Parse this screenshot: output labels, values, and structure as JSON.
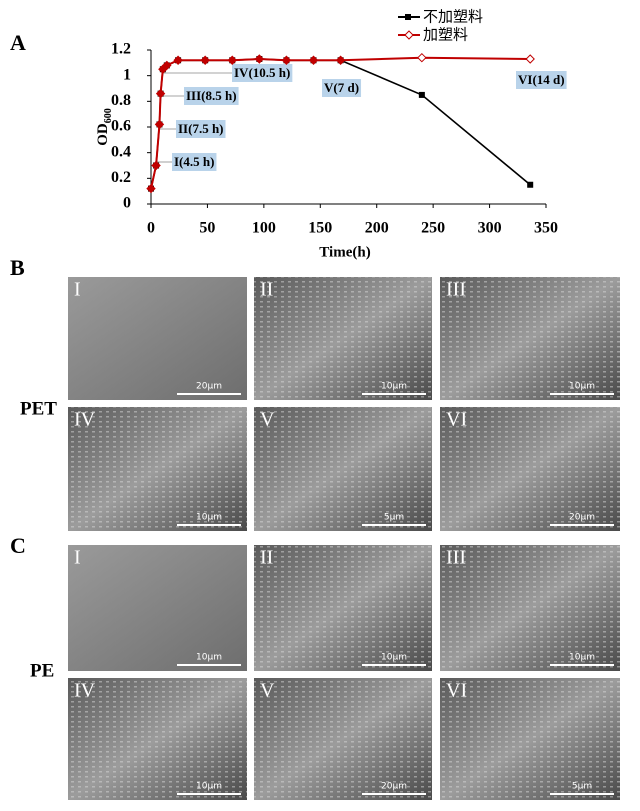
{
  "chart_data": {
    "type": "line",
    "panel_label": "A",
    "x_label": "Time(h)",
    "y_label": {
      "main": "OD",
      "subscript": "600"
    },
    "x": [
      0,
      4.5,
      7.5,
      8.5,
      10.5,
      14,
      24,
      48,
      72,
      96,
      120,
      144,
      168,
      240,
      336
    ],
    "series": [
      {
        "name": "不加塑料",
        "color": "#000000",
        "values": [
          0.12,
          0.3,
          0.62,
          0.86,
          1.05,
          1.08,
          1.12,
          1.12,
          1.12,
          1.13,
          1.12,
          1.12,
          1.12,
          0.85,
          0.15
        ]
      },
      {
        "name": "加塑料",
        "color": "#c00000",
        "values": [
          0.12,
          0.3,
          0.62,
          0.86,
          1.05,
          1.08,
          1.12,
          1.12,
          1.12,
          1.13,
          1.12,
          1.12,
          1.12,
          1.14,
          1.13
        ]
      }
    ],
    "xlim": [
      0,
      350
    ],
    "xticks": [
      0,
      50,
      100,
      150,
      200,
      250,
      300,
      350
    ],
    "ylim": [
      0,
      1.2
    ],
    "yticks": [
      0,
      0.2,
      0.4,
      0.6,
      0.8,
      1,
      1.2
    ],
    "annotations": [
      "I(4.5 h)",
      "II(7.5 h)",
      "III(8.5 h)",
      "IV(10.5 h)",
      "V(7 d)",
      "VI(14 d)"
    ]
  },
  "panels": [
    {
      "label": "B",
      "material": "PET",
      "images": [
        {
          "numeral": "I",
          "scale": "20μm"
        },
        {
          "numeral": "II",
          "scale": "10μm"
        },
        {
          "numeral": "III",
          "scale": "10μm"
        },
        {
          "numeral": "IV",
          "scale": "10μm"
        },
        {
          "numeral": "V",
          "scale": "5μm"
        },
        {
          "numeral": "VI",
          "scale": "20μm"
        }
      ]
    },
    {
      "label": "C",
      "material": "PE",
      "images": [
        {
          "numeral": "I",
          "scale": "10μm"
        },
        {
          "numeral": "II",
          "scale": "10μm"
        },
        {
          "numeral": "III",
          "scale": "10μm"
        },
        {
          "numeral": "IV",
          "scale": "10μm"
        },
        {
          "numeral": "V",
          "scale": "20μm"
        },
        {
          "numeral": "VI",
          "scale": "5μm"
        }
      ]
    }
  ]
}
